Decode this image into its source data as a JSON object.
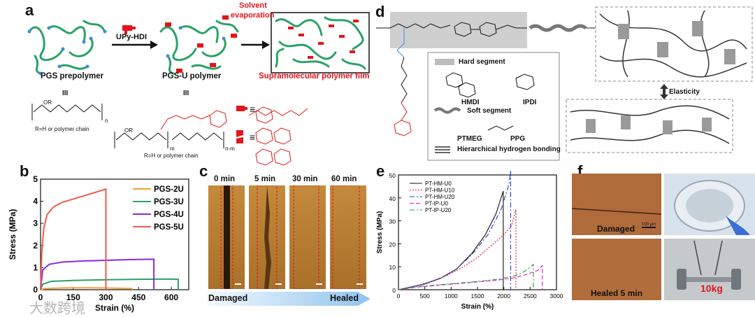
{
  "figure": {
    "panel_labels": [
      "a",
      "b",
      "c",
      "d",
      "e",
      "f"
    ],
    "a": {
      "step1_reagent": "UPy-HDI",
      "step2_label_line1": "Solvent",
      "step2_label_line2": "evaporation",
      "caption_prepolymer": "PGS prepolymer",
      "caption_pgsu": "PGS-U polymer",
      "caption_film": "Supramolecular polymer film",
      "eq_sign": "III",
      "rgroup_1": "R=H or polymer chain",
      "rgroup_2": "R=H or polymer chain",
      "equiv1": "≡",
      "equiv2": "≡",
      "n1": "n",
      "nm": "n-m",
      "m": "m",
      "or1": "OR",
      "or2": "OR"
    },
    "c": {
      "times": [
        "0 min",
        "5 min",
        "30 min",
        "60 min"
      ],
      "arrow_left": "Damaged",
      "arrow_right": "Healed"
    },
    "d": {
      "hard_segment": "Hard segment",
      "hmdi": "HMDI",
      "ipdi": "IPDI",
      "soft_segment": "Soft segment",
      "ptmeg": "PTMEG",
      "ppg": "PPG",
      "hbond": "Hierarchical hydrogen bonding",
      "elasticity": "Elasticity"
    },
    "f": {
      "damaged": "Damaged",
      "scale": "100 μm",
      "healed": "Healed 5 min",
      "weight": "10kg"
    },
    "watermark": "大数跨境",
    "colors": {
      "green": "#2aa268",
      "red": "#e0161b",
      "blue": "#3c8fd6",
      "gray": "#8c8c8c"
    }
  },
  "chart_data": [
    {
      "type": "line",
      "panel": "b",
      "title": "",
      "xlabel": "Strain (%)",
      "ylabel": "Stress (MPa)",
      "xlim": [
        0,
        680
      ],
      "ylim": [
        0,
        5
      ],
      "xticks": [
        0,
        150,
        300,
        450,
        600
      ],
      "yticks": [
        0,
        1,
        2,
        3,
        4,
        5
      ],
      "legend_position": "right",
      "series": [
        {
          "name": "PGS-2U",
          "color": "#f2a33a",
          "x": [
            0,
            20,
            100,
            200,
            300,
            420,
            420
          ],
          "y": [
            0,
            0.05,
            0.08,
            0.09,
            0.08,
            0.05,
            0
          ]
        },
        {
          "name": "PGS-3U",
          "color": "#2aa268",
          "x": [
            0,
            10,
            50,
            150,
            300,
            450,
            600,
            632,
            632
          ],
          "y": [
            0,
            0.25,
            0.38,
            0.42,
            0.45,
            0.47,
            0.48,
            0.47,
            0
          ]
        },
        {
          "name": "PGS-4U",
          "color": "#8a2be2",
          "x": [
            0,
            10,
            40,
            100,
            200,
            300,
            400,
            520,
            520
          ],
          "y": [
            0,
            0.9,
            1.15,
            1.25,
            1.3,
            1.33,
            1.36,
            1.38,
            0
          ]
        },
        {
          "name": "PGS-5U",
          "color": "#ef5a4c",
          "x": [
            0,
            5,
            15,
            30,
            60,
            100,
            150,
            200,
            250,
            300,
            300
          ],
          "y": [
            0,
            1.6,
            2.8,
            3.4,
            3.75,
            3.95,
            4.1,
            4.25,
            4.4,
            4.55,
            0
          ]
        }
      ]
    },
    {
      "type": "line",
      "panel": "e",
      "title": "",
      "xlabel": "Strain (%)",
      "ylabel": "Stress (MPa)",
      "xlim": [
        0,
        3000
      ],
      "ylim": [
        0,
        50
      ],
      "xticks": [
        0,
        500,
        1000,
        1500,
        2000,
        2500,
        3000
      ],
      "yticks": [
        0,
        10,
        20,
        30,
        40,
        50
      ],
      "legend_position": "top-left",
      "series": [
        {
          "name": "PT-HM-U0",
          "color": "#111111",
          "dash": "",
          "x": [
            0,
            200,
            500,
            800,
            1100,
            1400,
            1650,
            1850,
            1990,
            1990
          ],
          "y": [
            0,
            1,
            2.5,
            5,
            9,
            16,
            24,
            33,
            43,
            0
          ]
        },
        {
          "name": "PT-HM-U10",
          "color": "#e0161b",
          "dash": "2,2",
          "x": [
            0,
            300,
            600,
            900,
            1200,
            1500,
            1800,
            2000,
            2150,
            2230,
            2230
          ],
          "y": [
            0,
            1.5,
            3.5,
            6,
            9.5,
            14,
            20,
            24,
            28,
            35,
            0
          ]
        },
        {
          "name": "PT-HM-U20",
          "color": "#1f3ccf",
          "dash": "7,3,2,3",
          "x": [
            0,
            200,
            500,
            800,
            1100,
            1400,
            1700,
            1950,
            2100,
            2130,
            2130
          ],
          "y": [
            0,
            1,
            2.5,
            5,
            9,
            15.5,
            24,
            35,
            46,
            52,
            0
          ]
        },
        {
          "name": "PT-IP-U0",
          "color": "#d21ad6",
          "dash": "6,3",
          "x": [
            0,
            300,
            700,
            1100,
            1500,
            1900,
            2200,
            2450,
            2650,
            2730,
            2730
          ],
          "y": [
            0,
            1,
            1.8,
            2.6,
            3.4,
            4.2,
            5.2,
            6.8,
            8.5,
            10.5,
            0
          ]
        },
        {
          "name": "PT-IP-U20",
          "color": "#2a9a3a",
          "dash": "7,3,2,3",
          "x": [
            0,
            300,
            700,
            1100,
            1500,
            1900,
            2200,
            2400,
            2560,
            2560
          ],
          "y": [
            0,
            1.2,
            2,
            2.8,
            3.6,
            4.6,
            6,
            8,
            11,
            0
          ]
        }
      ]
    }
  ]
}
